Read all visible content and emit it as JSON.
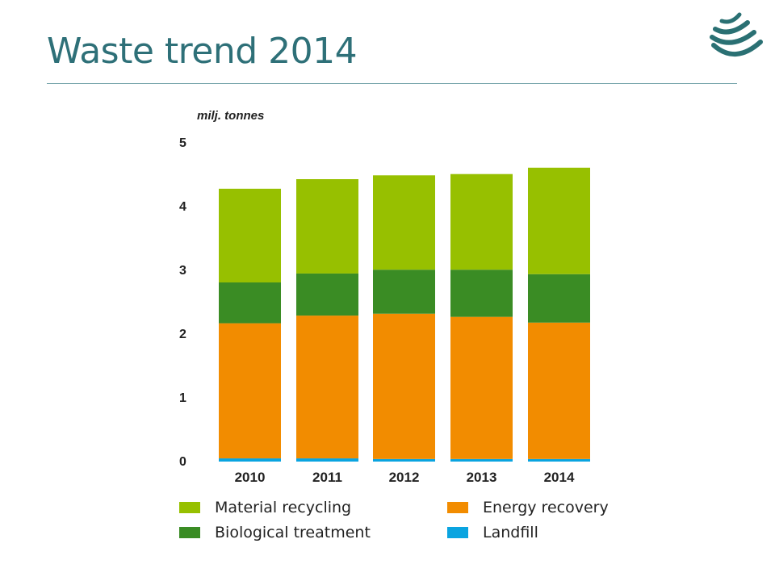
{
  "slide": {
    "title": "Waste trend 2014"
  },
  "chart_data": {
    "type": "bar",
    "stacked": true,
    "ylabel": "milj. tonnes",
    "ylim": [
      0,
      5
    ],
    "yticks": [
      0,
      1,
      2,
      3,
      4,
      5
    ],
    "categories": [
      "2010",
      "2011",
      "2012",
      "2013",
      "2014"
    ],
    "series": [
      {
        "name": "Landfill",
        "color": "#0aa4e0",
        "values": [
          0.05,
          0.05,
          0.04,
          0.04,
          0.04
        ]
      },
      {
        "name": "Energy recovery",
        "color": "#f28c00",
        "values": [
          2.12,
          2.24,
          2.28,
          2.23,
          2.14
        ]
      },
      {
        "name": "Biological treatment",
        "color": "#3a8c24",
        "values": [
          0.64,
          0.66,
          0.69,
          0.74,
          0.76
        ]
      },
      {
        "name": "Material recycling",
        "color": "#97c000",
        "values": [
          1.47,
          1.48,
          1.48,
          1.5,
          1.67
        ]
      }
    ],
    "grid": false,
    "legend_position": "bottom",
    "legend_order": [
      "Material recycling",
      "Energy recovery",
      "Biological treatment",
      "Landfill"
    ]
  }
}
